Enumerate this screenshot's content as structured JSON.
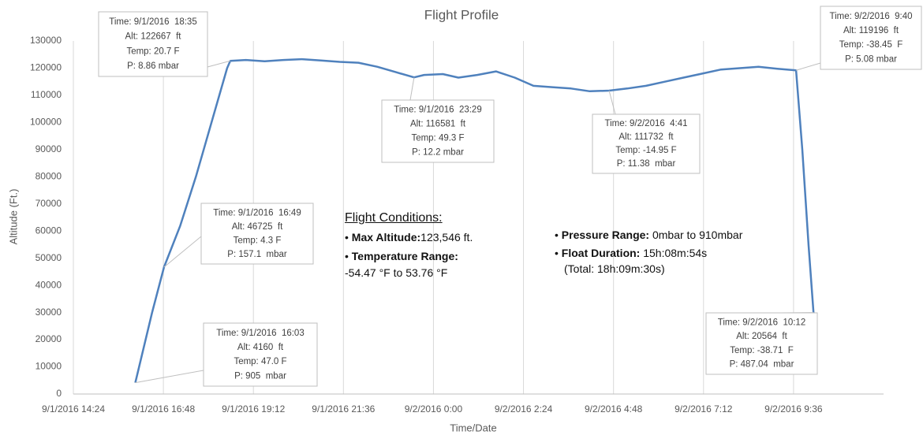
{
  "chart_data": {
    "type": "line",
    "title": "Flight Profile",
    "x_label": "Time/Date",
    "y_label": "Altitude (Ft.)",
    "color": "#4f81bd",
    "grid": "x",
    "xlim": [
      "9/1/2016 14:24",
      "9/2/2016 12:00"
    ],
    "xticks": [
      "9/1/2016 14:24",
      "9/1/2016 16:48",
      "9/1/2016 19:12",
      "9/1/2016 21:36",
      "9/2/2016 0:00",
      "9/2/2016 2:24",
      "9/2/2016 4:48",
      "9/2/2016 7:12",
      "9/2/2016 9:36"
    ],
    "ylim": [
      0,
      130000
    ],
    "yticks": [
      0,
      10000,
      20000,
      30000,
      40000,
      50000,
      60000,
      70000,
      80000,
      90000,
      100000,
      110000,
      120000,
      130000
    ],
    "x": [
      "9/1/2016 16:03",
      "9/1/2016 16:30",
      "9/1/2016 16:49",
      "9/1/2016 17:15",
      "9/1/2016 17:40",
      "9/1/2016 18:05",
      "9/1/2016 18:30",
      "9/1/2016 18:35",
      "9/1/2016 19:00",
      "9/1/2016 19:30",
      "9/1/2016 20:00",
      "9/1/2016 20:30",
      "9/1/2016 21:00",
      "9/1/2016 21:30",
      "9/1/2016 22:00",
      "9/1/2016 22:30",
      "9/1/2016 23:00",
      "9/1/2016 23:29",
      "9/1/2016 23:45",
      "9/2/2016 0:15",
      "9/2/2016 0:40",
      "9/2/2016 1:10",
      "9/2/2016 1:40",
      "9/2/2016 2:10",
      "9/2/2016 2:40",
      "9/2/2016 3:10",
      "9/2/2016 3:40",
      "9/2/2016 4:10",
      "9/2/2016 4:41",
      "9/2/2016 5:10",
      "9/2/2016 5:40",
      "9/2/2016 6:10",
      "9/2/2016 6:40",
      "9/2/2016 7:10",
      "9/2/2016 7:40",
      "9/2/2016 8:10",
      "9/2/2016 8:40",
      "9/2/2016 9:10",
      "9/2/2016 9:40",
      "9/2/2016 9:50",
      "9/2/2016 10:00",
      "9/2/2016 10:08"
    ],
    "values": [
      4160,
      30000,
      46725,
      62000,
      80000,
      100000,
      120000,
      122667,
      123000,
      122500,
      123000,
      123300,
      122800,
      122300,
      122000,
      120500,
      118500,
      116581,
      117500,
      117800,
      116500,
      117500,
      118800,
      116500,
      113500,
      113000,
      112500,
      111500,
      111732,
      112500,
      113500,
      115000,
      116500,
      118000,
      119500,
      120000,
      120500,
      119800,
      119196,
      90000,
      55000,
      30000
    ],
    "annotations": [
      {
        "lines": [
          "Time: 9/1/2016  18:35",
          "Alt: 122667  ft",
          "Temp: 20.7 F",
          "P: 8.86 mbar"
        ]
      },
      {
        "lines": [
          "Time: 9/1/2016  23:29",
          "Alt: 116581  ft",
          "Temp: 49.3 F",
          "P: 12.2 mbar"
        ]
      },
      {
        "lines": [
          "Time: 9/2/2016  4:41",
          "Alt: 111732  ft",
          "Temp: -14.95 F",
          "P: 11.38  mbar"
        ]
      },
      {
        "lines": [
          "Time: 9/2/2016  9:40",
          "Alt: 119196  ft",
          "Temp: -38.45  F",
          "P: 5.08 mbar"
        ]
      },
      {
        "lines": [
          "Time: 9/1/2016  16:49",
          "Alt: 46725  ft",
          "Temp: 4.3 F",
          "P: 157.1  mbar"
        ]
      },
      {
        "lines": [
          "Time: 9/1/2016  16:03",
          "Alt: 4160  ft",
          "Temp: 47.0 F",
          "P: 905  mbar"
        ]
      },
      {
        "lines": [
          "Time: 9/2/2016  10:12",
          "Alt: 20564  ft",
          "Temp: -38.71  F",
          "P: 487.04  mbar"
        ]
      }
    ],
    "conditions": {
      "title": "Flight Conditions:",
      "items": [
        {
          "label": "Max Altitude:",
          "value": "123,546 ft."
        },
        {
          "label": "Temperature Range:",
          "value": "-54.47 °F to 53.76 °F"
        },
        {
          "label": "Pressure Range:",
          "value": " 0mbar to 910mbar"
        },
        {
          "label": "Float Duration:",
          "value": " 15h:08m:54s",
          "note": "(Total: 18h:09m:30s)"
        }
      ]
    }
  }
}
